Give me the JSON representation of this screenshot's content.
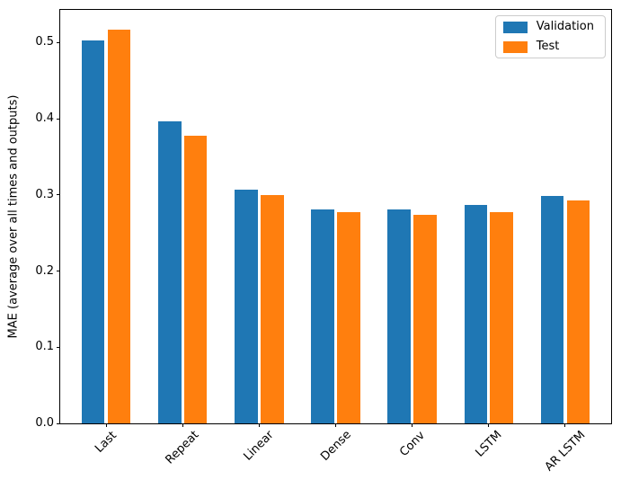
{
  "chart_data": {
    "type": "bar",
    "title": "",
    "xlabel": "",
    "ylabel": "MAE (average over all times and outputs)",
    "categories": [
      "Last",
      "Repeat",
      "Linear",
      "Dense",
      "Conv",
      "LSTM",
      "AR LSTM"
    ],
    "series": [
      {
        "name": "Validation",
        "color": "#1f77b4",
        "values": [
          0.503,
          0.397,
          0.307,
          0.281,
          0.281,
          0.287,
          0.299
        ]
      },
      {
        "name": "Test",
        "color": "#ff7f0e",
        "values": [
          0.517,
          0.378,
          0.3,
          0.277,
          0.274,
          0.277,
          0.293
        ]
      }
    ],
    "ylim": [
      0,
      0.543
    ],
    "yticks": [
      0.0,
      0.1,
      0.2,
      0.3,
      0.4,
      0.5
    ],
    "ytick_labels": [
      "0.0",
      "0.1",
      "0.2",
      "0.3",
      "0.4",
      "0.5"
    ],
    "x_tick_rotation": 45,
    "grid": false,
    "bar_width": 0.3,
    "bar_offset": 0.17,
    "legend": {
      "position": "upper right",
      "entries": [
        "Validation",
        "Test"
      ]
    }
  }
}
